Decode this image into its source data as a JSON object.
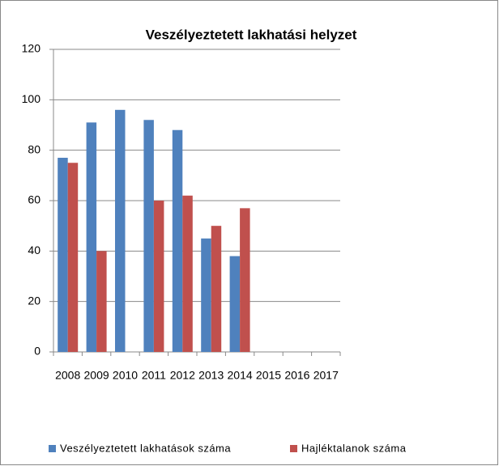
{
  "chart_data": {
    "type": "bar",
    "title": "Veszélyeztetett lakhatási helyzet",
    "categories": [
      "2008",
      "2009",
      "2010",
      "2011",
      "2012",
      "2013",
      "2014",
      "2015",
      "2016",
      "2017"
    ],
    "series": [
      {
        "name": "Veszélyeztetett lakhatások száma",
        "color": "#4f81bd",
        "values": [
          77,
          91,
          96,
          92,
          88,
          45,
          38,
          null,
          null,
          null
        ]
      },
      {
        "name": "Hajléktalanok száma",
        "color": "#c0504d",
        "values": [
          75,
          40,
          null,
          60,
          62,
          50,
          57,
          null,
          null,
          null
        ]
      }
    ],
    "ylim": [
      0,
      120
    ],
    "yticks": [
      0,
      20,
      40,
      60,
      80,
      100,
      120
    ],
    "grid": true,
    "legend": "bottom"
  }
}
